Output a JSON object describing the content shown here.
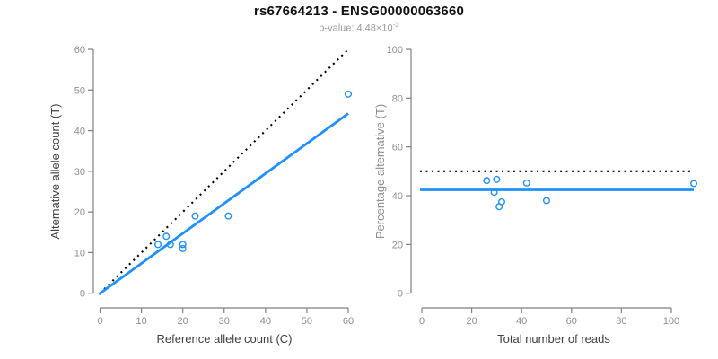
{
  "header": {
    "title": "rs67664213 - ENSG00000063660",
    "subtitle_main": "p-value: 4.48×10",
    "subtitle_exponent": "-3"
  },
  "colors": {
    "accent_blue": "#1E90FF",
    "dotted_black": "#000000",
    "axis_gray": "#7f7f7f",
    "tick_label_gray": "#8e8e8e",
    "label_dark": "#404040",
    "subtitle_gray": "#9a9a9a",
    "background": "#ffffff"
  },
  "chart_data": [
    {
      "type": "scatter",
      "name": "allele-counts-panel",
      "xlabel": "Reference allele count (C)",
      "ylabel": "Alternative allele count (T)",
      "xlim": [
        0,
        60
      ],
      "ylim": [
        0,
        60
      ],
      "xticks": [
        0,
        10,
        20,
        30,
        40,
        50,
        60
      ],
      "yticks": [
        0,
        10,
        20,
        30,
        40,
        50,
        60
      ],
      "grid": false,
      "legend": "none",
      "marker": "open-circle",
      "point_color": "#1E90FF",
      "xlabel_color": "#404040",
      "ylabel_color": "#404040",
      "points": [
        [
          14,
          12
        ],
        [
          16,
          14
        ],
        [
          17,
          12
        ],
        [
          20,
          11
        ],
        [
          20,
          12
        ],
        [
          23,
          19
        ],
        [
          31,
          19
        ],
        [
          60,
          49
        ]
      ],
      "lines": [
        {
          "name": "identity-50pct-line",
          "style": "dotted",
          "color": "#000000",
          "from": [
            0,
            0
          ],
          "to": [
            60,
            60
          ]
        },
        {
          "name": "fitted-ratio-line",
          "style": "solid",
          "color": "#1E90FF",
          "from": [
            -0.3,
            -0.25
          ],
          "to": [
            60,
            44.2
          ]
        }
      ]
    },
    {
      "type": "scatter",
      "name": "percentage-panel",
      "xlabel": "Total number of reads",
      "ylabel": "Percentage alternative (T)",
      "xlim": [
        0,
        110
      ],
      "ylim": [
        0,
        100
      ],
      "xticks": [
        0,
        20,
        40,
        60,
        80,
        100
      ],
      "yticks": [
        0,
        20,
        40,
        60,
        80,
        100
      ],
      "grid": false,
      "legend": "none",
      "marker": "open-circle",
      "point_color": "#1E90FF",
      "xlabel_color": "#404040",
      "ylabel_color": "#8e8e8e",
      "points": [
        [
          26,
          46.2
        ],
        [
          29,
          41.4
        ],
        [
          30,
          46.7
        ],
        [
          31,
          35.5
        ],
        [
          32,
          37.5
        ],
        [
          42,
          45.2
        ],
        [
          50,
          38
        ],
        [
          109,
          45
        ]
      ],
      "lines": [
        {
          "name": "expected-50pct-line",
          "style": "dotted",
          "color": "#000000",
          "from": [
            -0.7,
            50
          ],
          "to": [
            108.5,
            50
          ]
        },
        {
          "name": "mean-percentage-line",
          "style": "solid",
          "color": "#1E90FF",
          "from": [
            -0.7,
            42.4
          ],
          "to": [
            109,
            42.4
          ]
        }
      ]
    }
  ]
}
